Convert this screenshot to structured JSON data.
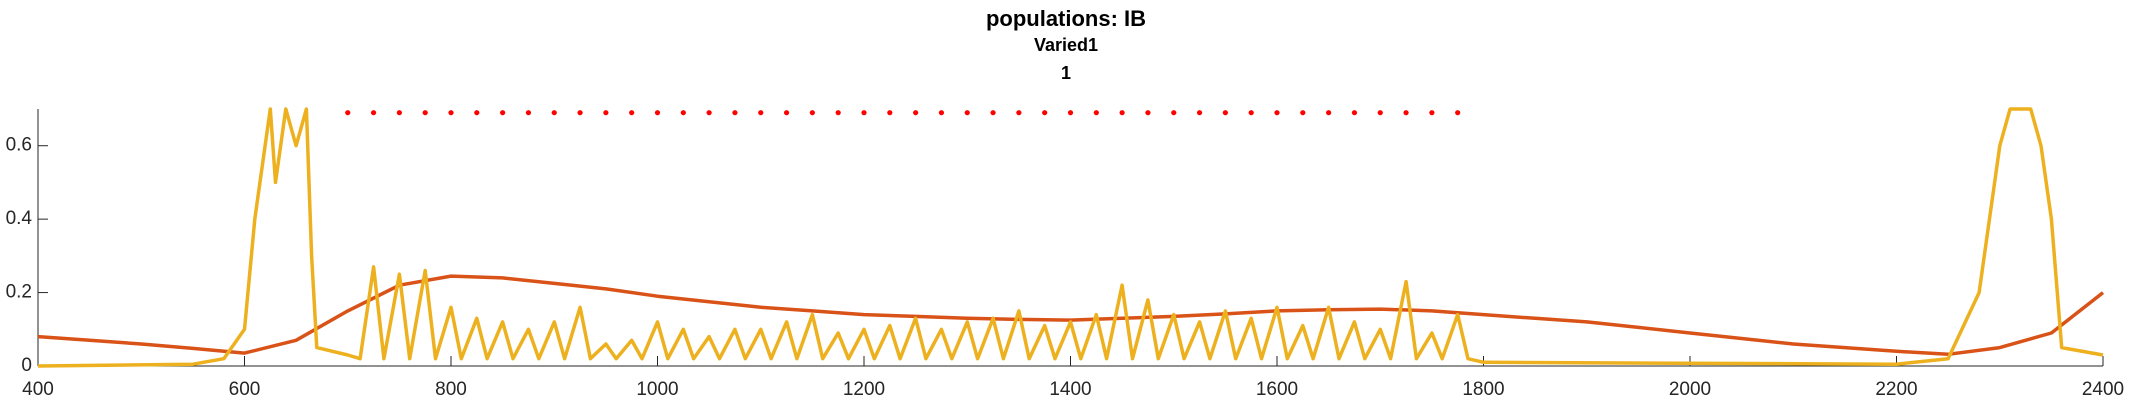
{
  "chart_data": {
    "type": "line",
    "title": "populations: IB",
    "subtitle": [
      "Varied1",
      "1"
    ],
    "xlim": [
      400,
      2400
    ],
    "xticks": [
      400,
      600,
      800,
      1000,
      1200,
      1400,
      1600,
      1800,
      2000,
      2200,
      2400
    ],
    "ylim": [
      0,
      0.7
    ],
    "yticks": [
      0,
      0.2,
      0.4,
      0.6
    ],
    "series": [
      {
        "color": "#d95319",
        "style": "solid",
        "x": [
          400,
          450,
          500,
          550,
          600,
          650,
          700,
          750,
          800,
          850,
          900,
          950,
          1000,
          1050,
          1100,
          1150,
          1200,
          1250,
          1300,
          1350,
          1400,
          1450,
          1500,
          1550,
          1600,
          1650,
          1700,
          1750,
          1800,
          1850,
          1900,
          1950,
          2000,
          2050,
          2100,
          2150,
          2200,
          2250,
          2300,
          2350,
          2400
        ],
        "values": [
          0.08,
          0.07,
          0.06,
          0.048,
          0.035,
          0.07,
          0.15,
          0.22,
          0.245,
          0.24,
          0.225,
          0.21,
          0.19,
          0.175,
          0.16,
          0.15,
          0.14,
          0.135,
          0.13,
          0.127,
          0.125,
          0.13,
          0.135,
          0.142,
          0.15,
          0.153,
          0.155,
          0.15,
          0.14,
          0.13,
          0.12,
          0.105,
          0.09,
          0.075,
          0.06,
          0.05,
          0.04,
          0.032,
          0.05,
          0.09,
          0.2
        ]
      },
      {
        "color": "#edb120",
        "style": "solid",
        "x": [
          400,
          550,
          580,
          600,
          610,
          620,
          625,
          630,
          640,
          650,
          660,
          665,
          670,
          700,
          712,
          725,
          735,
          750,
          760,
          775,
          785,
          800,
          810,
          825,
          835,
          850,
          860,
          875,
          885,
          900,
          910,
          925,
          935,
          950,
          960,
          975,
          985,
          1000,
          1010,
          1025,
          1035,
          1050,
          1060,
          1075,
          1085,
          1100,
          1110,
          1125,
          1135,
          1150,
          1160,
          1175,
          1185,
          1200,
          1210,
          1225,
          1235,
          1250,
          1260,
          1275,
          1285,
          1300,
          1310,
          1325,
          1335,
          1350,
          1360,
          1375,
          1385,
          1400,
          1410,
          1425,
          1435,
          1450,
          1460,
          1475,
          1485,
          1500,
          1510,
          1525,
          1535,
          1550,
          1560,
          1575,
          1585,
          1600,
          1610,
          1625,
          1635,
          1650,
          1660,
          1675,
          1685,
          1700,
          1710,
          1725,
          1735,
          1750,
          1760,
          1775,
          1785,
          1800,
          2200,
          2250,
          2280,
          2300,
          2310,
          2330,
          2340,
          2350,
          2360,
          2400
        ],
        "values": [
          0,
          0.005,
          0.02,
          0.1,
          0.4,
          0.6,
          0.7,
          0.5,
          0.7,
          0.6,
          0.7,
          0.3,
          0.05,
          0.03,
          0.02,
          0.27,
          0.02,
          0.25,
          0.02,
          0.26,
          0.02,
          0.16,
          0.02,
          0.13,
          0.02,
          0.12,
          0.02,
          0.1,
          0.02,
          0.12,
          0.02,
          0.16,
          0.02,
          0.06,
          0.02,
          0.07,
          0.02,
          0.12,
          0.02,
          0.1,
          0.02,
          0.08,
          0.02,
          0.1,
          0.02,
          0.1,
          0.02,
          0.12,
          0.02,
          0.14,
          0.02,
          0.09,
          0.02,
          0.1,
          0.02,
          0.11,
          0.02,
          0.13,
          0.02,
          0.1,
          0.02,
          0.12,
          0.02,
          0.13,
          0.02,
          0.15,
          0.02,
          0.11,
          0.02,
          0.12,
          0.02,
          0.14,
          0.02,
          0.22,
          0.02,
          0.18,
          0.02,
          0.14,
          0.02,
          0.12,
          0.02,
          0.15,
          0.02,
          0.13,
          0.02,
          0.16,
          0.02,
          0.11,
          0.02,
          0.16,
          0.02,
          0.12,
          0.02,
          0.1,
          0.02,
          0.23,
          0.02,
          0.09,
          0.02,
          0.14,
          0.02,
          0.01,
          0.005,
          0.02,
          0.2,
          0.6,
          0.7,
          0.7,
          0.6,
          0.4,
          0.05,
          0.03
        ]
      },
      {
        "color": "#ff0000",
        "style": "dotted",
        "x": [
          700,
          725,
          750,
          775,
          800,
          825,
          850,
          875,
          900,
          925,
          950,
          975,
          1000,
          1025,
          1050,
          1075,
          1100,
          1125,
          1150,
          1175,
          1200,
          1225,
          1250,
          1275,
          1300,
          1325,
          1350,
          1375,
          1400,
          1425,
          1450,
          1475,
          1500,
          1525,
          1550,
          1575,
          1600,
          1625,
          1650,
          1675,
          1700,
          1725,
          1750,
          1775
        ],
        "values": [
          0.69,
          0.69,
          0.69,
          0.69,
          0.69,
          0.69,
          0.69,
          0.69,
          0.69,
          0.69,
          0.69,
          0.69,
          0.69,
          0.69,
          0.69,
          0.69,
          0.69,
          0.69,
          0.69,
          0.69,
          0.69,
          0.69,
          0.69,
          0.69,
          0.69,
          0.69,
          0.69,
          0.69,
          0.69,
          0.69,
          0.69,
          0.69,
          0.69,
          0.69,
          0.69,
          0.69,
          0.69,
          0.69,
          0.69,
          0.69,
          0.69,
          0.69,
          0.69,
          0.69
        ]
      }
    ]
  }
}
